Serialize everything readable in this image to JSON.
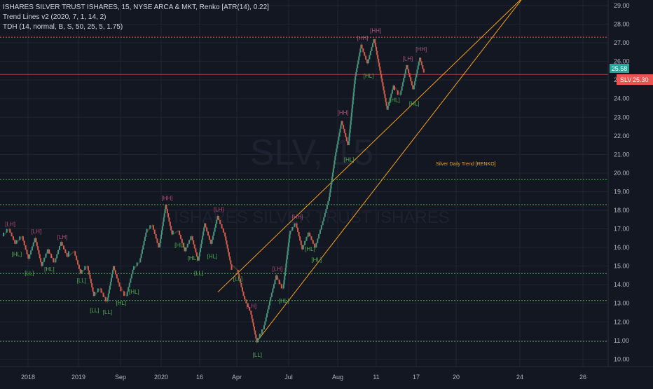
{
  "legend": {
    "line1": "ISHARES SILVER TRUST ISHARES, 15, NYSE ARCA & MKT, Renko [ATR(14), 0.22]",
    "line2": "Trend Lines v2 (2020, 7, 1, 14, 2)",
    "line3": "TDH (14, normal, B, S, 50, 25, 5, 1.75)"
  },
  "watermark": {
    "symbol": "SLV, 15",
    "name": "ISHARES SILVER TRUST ISHARES"
  },
  "price_badges": {
    "last": "25.58",
    "symbol_label": "SLV",
    "current": "25.30"
  },
  "colors": {
    "background": "#131722",
    "up": "#26a69a",
    "down": "#ef5350",
    "trend_line": "#f7a21b",
    "support_line": "#4caf50",
    "resistance_line": "#ef5350",
    "grid": "#1f2433"
  },
  "chart_data": {
    "type": "renko",
    "title": "ISHARES SILVER TRUST ISHARES, 15, NYSE ARCA & MKT, Renko [ATR(14), 0.22]",
    "x_tick_labels": [
      "2018",
      "2019",
      "Sep",
      "2020",
      "16",
      "Apr",
      "Jul",
      "Aug",
      "11",
      "17",
      "20",
      "24",
      "26"
    ],
    "y_ticks": [
      10,
      11,
      12,
      13,
      14,
      15,
      16,
      17,
      18,
      19,
      20,
      21,
      22,
      23,
      24,
      25,
      26,
      27,
      28,
      29
    ],
    "ylim": [
      9.6,
      29.3
    ],
    "price_path": [
      [
        0,
        16.6
      ],
      [
        3,
        17.0
      ],
      [
        6,
        16.2
      ],
      [
        9,
        16.6
      ],
      [
        12,
        15.4
      ],
      [
        15,
        16.5
      ],
      [
        18,
        15.0
      ],
      [
        21,
        15.9
      ],
      [
        24,
        15.2
      ],
      [
        27,
        16.3
      ],
      [
        30,
        15.5
      ],
      [
        33,
        15.8
      ],
      [
        36,
        14.6
      ],
      [
        39,
        15.0
      ],
      [
        42,
        13.4
      ],
      [
        45,
        13.8
      ],
      [
        48,
        13.1
      ],
      [
        51,
        15.0
      ],
      [
        54,
        13.9
      ],
      [
        57,
        13.4
      ],
      [
        60,
        14.8
      ],
      [
        63,
        15.2
      ],
      [
        66,
        16.8
      ],
      [
        69,
        17.2
      ],
      [
        72,
        16.0
      ],
      [
        75,
        18.3
      ],
      [
        78,
        16.7
      ],
      [
        81,
        16.9
      ],
      [
        84,
        15.8
      ],
      [
        87,
        16.6
      ],
      [
        90,
        15.3
      ],
      [
        93,
        17.3
      ],
      [
        96,
        16.2
      ],
      [
        99,
        17.7
      ],
      [
        102,
        16.8
      ],
      [
        105,
        15.1
      ],
      [
        108,
        14.8
      ],
      [
        111,
        13.4
      ],
      [
        114,
        12.6
      ],
      [
        117,
        10.9
      ],
      [
        120,
        11.6
      ],
      [
        123,
        13.1
      ],
      [
        126,
        14.5
      ],
      [
        129,
        13.8
      ],
      [
        132,
        16.7
      ],
      [
        135,
        17.3
      ],
      [
        138,
        15.9
      ],
      [
        141,
        16.8
      ],
      [
        144,
        16.0
      ],
      [
        147,
        17.2
      ],
      [
        150,
        18.5
      ],
      [
        153,
        20.9
      ],
      [
        156,
        22.8
      ],
      [
        159,
        21.5
      ],
      [
        162,
        25.0
      ],
      [
        165,
        26.9
      ],
      [
        168,
        25.9
      ],
      [
        171,
        27.2
      ],
      [
        174,
        25.3
      ],
      [
        177,
        23.4
      ],
      [
        180,
        24.7
      ],
      [
        183,
        24.2
      ],
      [
        186,
        25.8
      ],
      [
        189,
        24.5
      ],
      [
        192,
        26.2
      ],
      [
        194,
        25.4
      ]
    ],
    "horizontal_levels": {
      "support": [
        10.95,
        13.15,
        14.6,
        18.3,
        19.65
      ],
      "resistance": [
        27.3,
        25.3
      ]
    },
    "trend_lines": [
      {
        "from": [
          117,
          10.95
        ],
        "to": [
          240,
          29.5
        ]
      },
      {
        "from": [
          99,
          13.6
        ],
        "to": [
          240,
          29.5
        ]
      }
    ],
    "annotation": "Silver Daily Trend [RENKO]",
    "pivot_labels": [
      {
        "text": "[LH]",
        "at": [
          3,
          17.0
        ]
      },
      {
        "text": "[HL]",
        "at": [
          6,
          15.9
        ]
      },
      {
        "text": "[LL]",
        "at": [
          12,
          14.9
        ]
      },
      {
        "text": "[LH]",
        "at": [
          15,
          16.6
        ]
      },
      {
        "text": "[HL]",
        "at": [
          21,
          15.1
        ]
      },
      {
        "text": "[LH]",
        "at": [
          27,
          16.3
        ]
      },
      {
        "text": "[LL]",
        "at": [
          36,
          14.5
        ]
      },
      {
        "text": "[LL]",
        "at": [
          42,
          12.9
        ]
      },
      {
        "text": "[LL]",
        "at": [
          48,
          12.8
        ]
      },
      {
        "text": "[HL]",
        "at": [
          54,
          13.3
        ]
      },
      {
        "text": "[HL]",
        "at": [
          60,
          13.9
        ]
      },
      {
        "text": "[HH]",
        "at": [
          75,
          18.4
        ]
      },
      {
        "text": "[HL]",
        "at": [
          81,
          16.4
        ]
      },
      {
        "text": "[HL]",
        "at": [
          87,
          15.7
        ]
      },
      {
        "text": "[LL]",
        "at": [
          90,
          14.9
        ]
      },
      {
        "text": "[HL]",
        "at": [
          96,
          15.8
        ]
      },
      {
        "text": "[LH]",
        "at": [
          99,
          17.8
        ]
      },
      {
        "text": "[LL]",
        "at": [
          108,
          14.6
        ]
      },
      {
        "text": "[LH]",
        "at": [
          114,
          12.6
        ]
      },
      {
        "text": "[LL]",
        "at": [
          117,
          10.5
        ]
      },
      {
        "text": "[LH]",
        "at": [
          126,
          14.6
        ]
      },
      {
        "text": "[HL]",
        "at": [
          129,
          13.4
        ]
      },
      {
        "text": "[HH]",
        "at": [
          135,
          17.4
        ]
      },
      {
        "text": "[HL]",
        "at": [
          141,
          16.2
        ]
      },
      {
        "text": "[HL]",
        "at": [
          144,
          15.6
        ]
      },
      {
        "text": "[HH]",
        "at": [
          156,
          23.0
        ]
      },
      {
        "text": "[HL]",
        "at": [
          159,
          21.0
        ]
      },
      {
        "text": "[HH]",
        "at": [
          165,
          27.0
        ]
      },
      {
        "text": "[HL]",
        "at": [
          168,
          25.5
        ]
      },
      {
        "text": "[HH]",
        "at": [
          171,
          27.4
        ]
      },
      {
        "text": "[HL]",
        "at": [
          180,
          24.2
        ]
      },
      {
        "text": "[LH]",
        "at": [
          186,
          25.9
        ]
      },
      {
        "text": "[HL]",
        "at": [
          189,
          24.0
        ]
      },
      {
        "text": "[HH]",
        "at": [
          192,
          26.4
        ]
      }
    ]
  }
}
